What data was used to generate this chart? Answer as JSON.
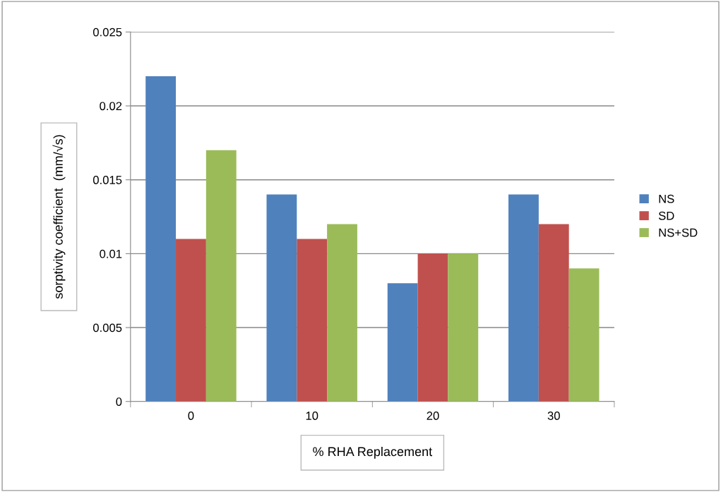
{
  "chart_data": {
    "type": "bar",
    "xlabel": "% RHA Replacement",
    "ylabel": "sorptivity coefficient  (mm/√s)",
    "categories": [
      "0",
      "10",
      "20",
      "30"
    ],
    "series": [
      {
        "name": "NS",
        "color": "#4f81bd",
        "values": [
          0.022,
          0.014,
          0.008,
          0.014
        ]
      },
      {
        "name": "SD",
        "color": "#c0504d",
        "values": [
          0.011,
          0.011,
          0.01,
          0.012
        ]
      },
      {
        "name": "NS+SD",
        "color": "#9bbb59",
        "values": [
          0.017,
          0.012,
          0.01,
          0.009
        ]
      }
    ],
    "ylim": [
      0,
      0.025
    ],
    "yticks": [
      {
        "value": 0,
        "label": "0"
      },
      {
        "value": 0.005,
        "label": "0.005"
      },
      {
        "value": 0.01,
        "label": "0.01"
      },
      {
        "value": 0.015,
        "label": "0.015"
      },
      {
        "value": 0.02,
        "label": "0.02"
      },
      {
        "value": 0.025,
        "label": "0.025"
      }
    ],
    "grid": "y",
    "legend": "right"
  }
}
